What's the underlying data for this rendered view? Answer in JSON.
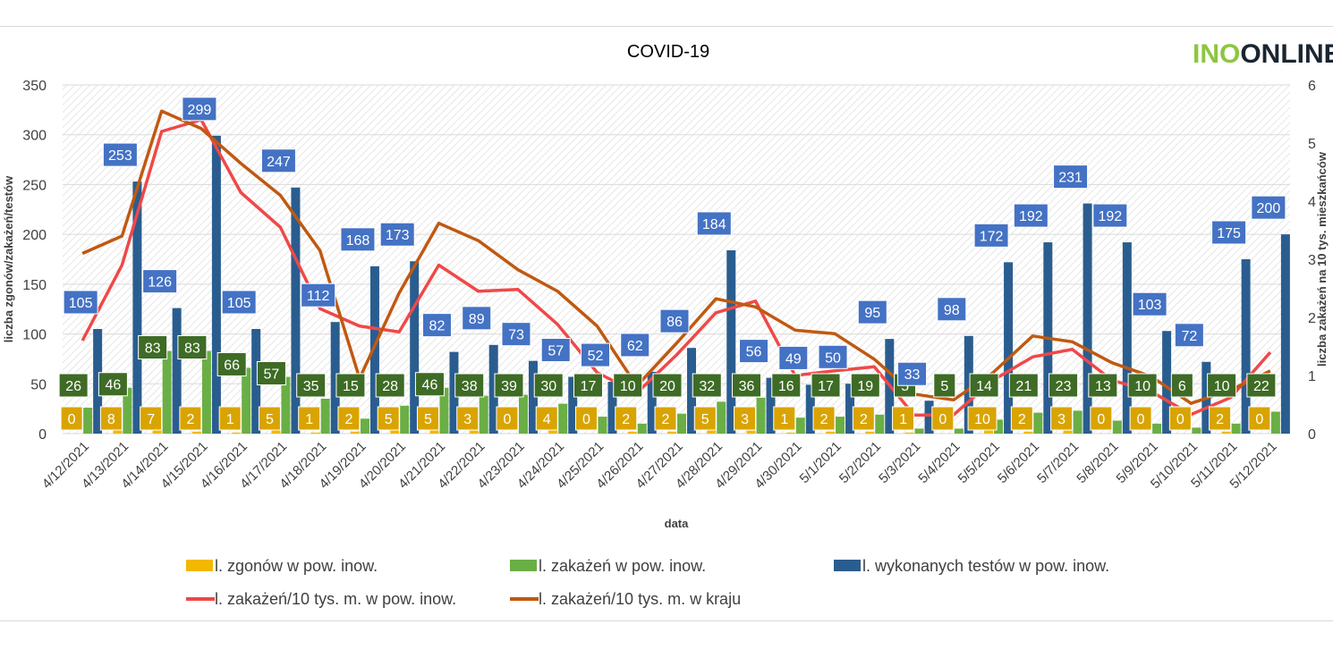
{
  "colors": {
    "deaths": "#f2b800",
    "cases": "#6aaf45",
    "tests": "#2a5d8f",
    "tests_label": "#4472c4",
    "cases_label": "#3e6b25",
    "deaths_label": "#d9a400",
    "line_local": "#f04848",
    "line_country": "#c05911",
    "logo_green": "#8dc63f",
    "logo_dark": "#1a2530"
  },
  "logo": {
    "text_a": "INO",
    "text_b": "ONLINE"
  },
  "chart_data": {
    "type": "bar",
    "title": "COVID-19",
    "xlabel": "data",
    "ylabel": "liczba zgonów/zakażeń/testów",
    "y2label": "liczba zakażeń na 10 tys. mieszkańców",
    "ylim": [
      0,
      350
    ],
    "y2lim": [
      0,
      6
    ],
    "yticks": [
      "0",
      "50",
      "100",
      "150",
      "200",
      "250",
      "300",
      "350"
    ],
    "y2ticks": [
      "0",
      "1",
      "2",
      "3",
      "4",
      "5",
      "6"
    ],
    "grid": true,
    "legend_position": "bottom",
    "categories": [
      "4/12/2021",
      "4/13/2021",
      "4/14/2021",
      "4/15/2021",
      "4/16/2021",
      "4/17/2021",
      "4/18/2021",
      "4/19/2021",
      "4/20/2021",
      "4/21/2021",
      "4/22/2021",
      "4/23/2021",
      "4/24/2021",
      "4/25/2021",
      "4/26/2021",
      "4/27/2021",
      "4/28/2021",
      "4/29/2021",
      "4/30/2021",
      "5/1/2021",
      "5/2/2021",
      "5/3/2021",
      "5/4/2021",
      "5/5/2021",
      "5/6/2021",
      "5/7/2021",
      "5/8/2021",
      "5/9/2021",
      "5/10/2021",
      "5/11/2021",
      "5/12/2021"
    ],
    "series": [
      {
        "name": "l. zgonów w pow. inow.",
        "type": "bar",
        "axis": "left",
        "values": [
          0,
          8,
          7,
          2,
          1,
          5,
          1,
          2,
          5,
          5,
          3,
          0,
          4,
          0,
          2,
          2,
          5,
          3,
          1,
          2,
          2,
          1,
          0,
          10,
          2,
          3,
          0,
          0,
          0,
          2,
          0
        ]
      },
      {
        "name": "l. zakażeń w pow. inow.",
        "type": "bar",
        "axis": "left",
        "values": [
          26,
          46,
          83,
          83,
          66,
          57,
          35,
          15,
          28,
          46,
          38,
          39,
          30,
          17,
          10,
          20,
          32,
          36,
          16,
          17,
          19,
          5,
          5,
          14,
          21,
          23,
          13,
          10,
          6,
          10,
          22
        ]
      },
      {
        "name": "l. wykonanych testów w pow. inow.",
        "type": "bar",
        "axis": "left",
        "values": [
          105,
          253,
          126,
          299,
          105,
          247,
          112,
          168,
          173,
          82,
          89,
          73,
          57,
          52,
          62,
          86,
          184,
          56,
          49,
          50,
          95,
          33,
          98,
          172,
          192,
          231,
          192,
          103,
          72,
          175,
          200
        ]
      },
      {
        "name": "l. zakażeń/10 tys. m. w pow. inow.",
        "type": "line",
        "axis": "right",
        "values": [
          1.6,
          2.9,
          5.2,
          5.4,
          4.15,
          3.55,
          2.15,
          1.85,
          1.75,
          2.9,
          2.45,
          2.48,
          1.88,
          1.05,
          0.7,
          1.35,
          2.08,
          2.28,
          1.0,
          1.08,
          1.15,
          0.32,
          0.32,
          0.92,
          1.32,
          1.45,
          0.92,
          0.72,
          0.33,
          0.62,
          1.4
        ]
      },
      {
        "name": "l. zakażeń/10 tys. m. w kraju",
        "type": "line",
        "axis": "right",
        "values": [
          3.1,
          3.4,
          5.55,
          5.25,
          4.65,
          4.1,
          3.15,
          0.95,
          2.42,
          3.62,
          3.32,
          2.82,
          2.45,
          1.85,
          0.82,
          1.55,
          2.32,
          2.18,
          1.78,
          1.72,
          1.28,
          0.68,
          0.58,
          1.05,
          1.68,
          1.58,
          1.22,
          0.98,
          0.52,
          0.75,
          1.08
        ]
      }
    ]
  }
}
